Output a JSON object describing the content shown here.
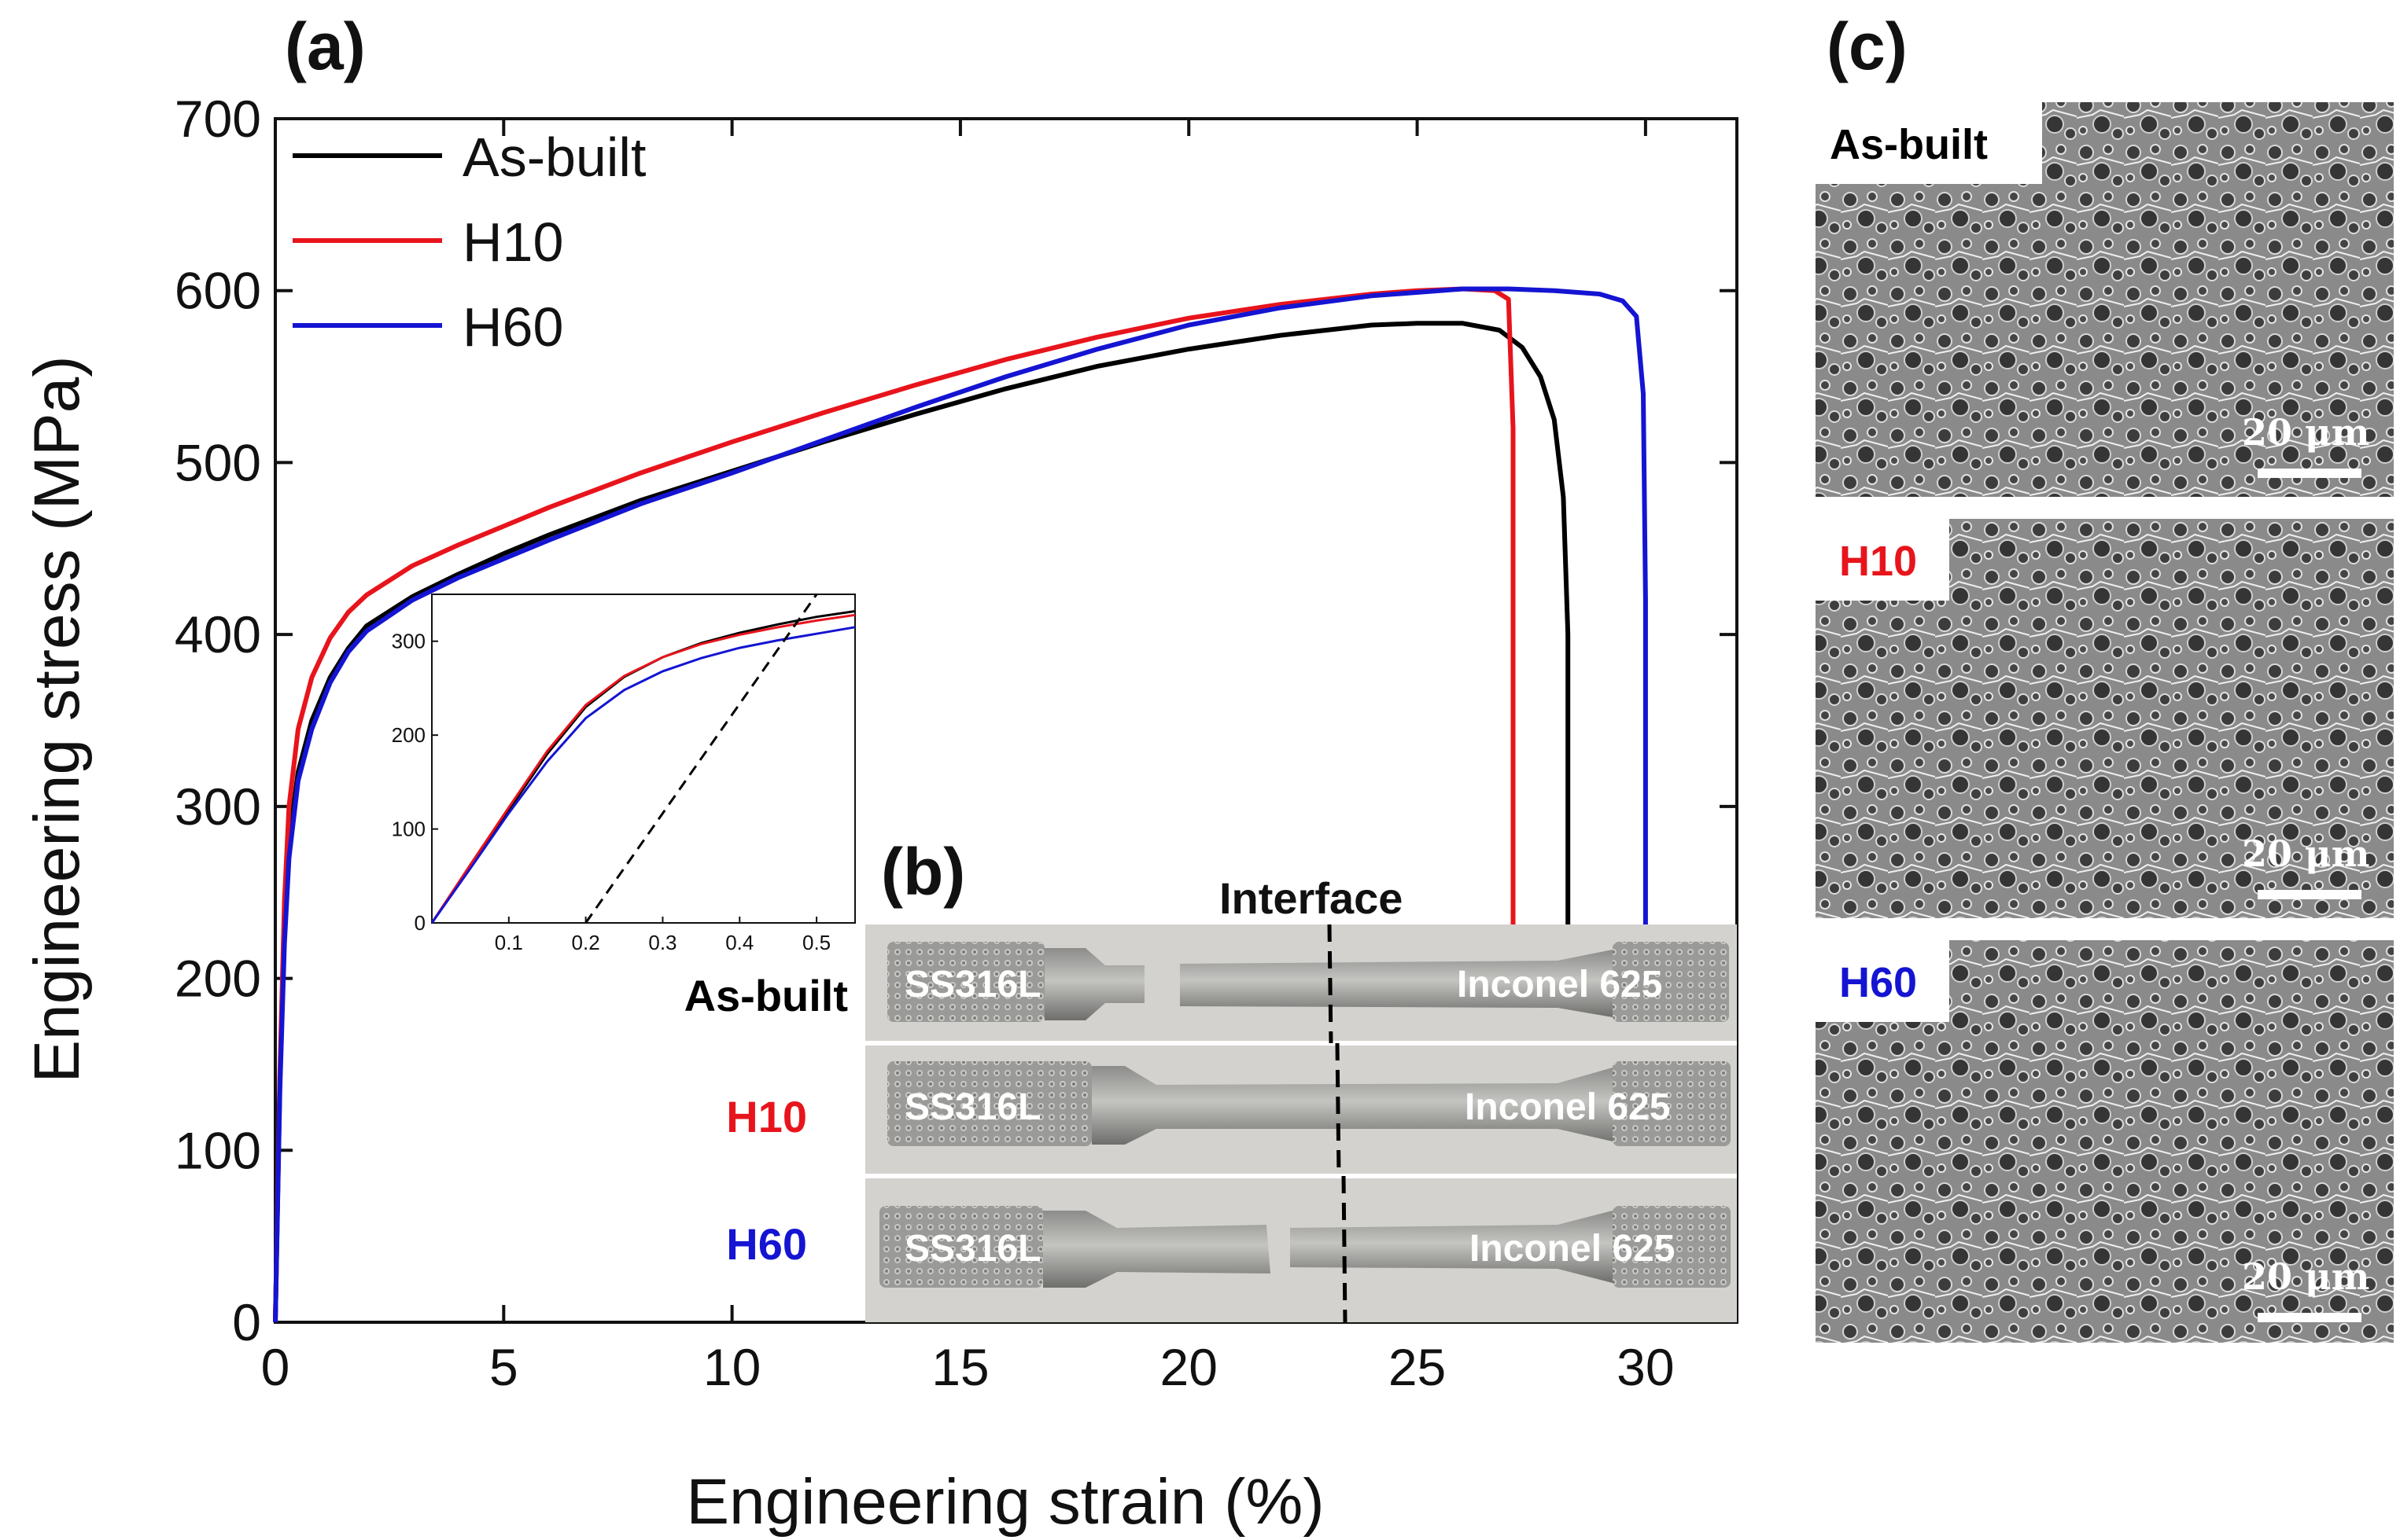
{
  "panel_labels": {
    "a": "(a)",
    "b": "(b)",
    "c": "(c)"
  },
  "colors": {
    "as_built": "#000000",
    "h10": "#e8141c",
    "h60": "#1414d2"
  },
  "chart_data": [
    {
      "type": "line",
      "panel": "(a)",
      "xlabel": "Engineering strain (%)",
      "ylabel": "Engineering stress (MPa)",
      "xlim": [
        0,
        32
      ],
      "ylim": [
        0,
        700
      ],
      "xticks": [
        0,
        5,
        10,
        15,
        20,
        25,
        30
      ],
      "yticks": [
        0,
        100,
        200,
        300,
        400,
        500,
        600,
        700
      ],
      "legend_position": "top-left",
      "series": [
        {
          "name": "As-built",
          "color": "#000000",
          "x": [
            0,
            0.1,
            0.2,
            0.3,
            0.5,
            0.8,
            1.2,
            1.6,
            2,
            3,
            4,
            5,
            6,
            8,
            10,
            12,
            14,
            16,
            18,
            20,
            22,
            24,
            25,
            26,
            26.8,
            27.3,
            27.7,
            28.0,
            28.2,
            28.3,
            28.3
          ],
          "y": [
            0,
            140,
            230,
            280,
            320,
            350,
            375,
            392,
            405,
            422,
            435,
            447,
            458,
            478,
            495,
            512,
            528,
            543,
            556,
            566,
            574,
            580,
            581,
            581,
            577,
            567,
            550,
            525,
            480,
            400,
            0
          ]
        },
        {
          "name": "H10",
          "color": "#e8141c",
          "x": [
            0,
            0.1,
            0.2,
            0.3,
            0.5,
            0.8,
            1.2,
            1.6,
            2,
            3,
            4,
            5,
            6,
            8,
            10,
            12,
            14,
            16,
            18,
            20,
            22,
            24,
            25,
            26,
            26.7,
            27.0,
            27.1,
            27.1
          ],
          "y": [
            0,
            145,
            245,
            300,
            345,
            375,
            398,
            413,
            423,
            440,
            452,
            463,
            474,
            494,
            512,
            529,
            545,
            560,
            573,
            584,
            592,
            598,
            600,
            601,
            600,
            595,
            520,
            0
          ]
        },
        {
          "name": "H60",
          "color": "#1414d2",
          "x": [
            0,
            0.1,
            0.2,
            0.3,
            0.5,
            0.8,
            1.2,
            1.6,
            2,
            3,
            4,
            5,
            6,
            8,
            10,
            12,
            14,
            16,
            18,
            20,
            22,
            24,
            26,
            27,
            28,
            29,
            29.5,
            29.8,
            29.95,
            30.0,
            30.0
          ],
          "y": [
            0,
            135,
            220,
            270,
            315,
            345,
            372,
            390,
            402,
            420,
            433,
            444,
            455,
            476,
            494,
            513,
            532,
            550,
            566,
            580,
            590,
            597,
            601,
            601,
            600,
            598,
            594,
            585,
            540,
            420,
            0
          ]
        }
      ]
    },
    {
      "type": "line",
      "panel": "inset",
      "xlim": [
        0,
        0.55
      ],
      "ylim": [
        0,
        350
      ],
      "xticks": [
        0.1,
        0.2,
        0.3,
        0.4,
        0.5
      ],
      "yticks": [
        0,
        100,
        200,
        300
      ],
      "series": [
        {
          "name": "As-built",
          "color": "#000000",
          "x": [
            0,
            0.05,
            0.1,
            0.15,
            0.2,
            0.25,
            0.3,
            0.35,
            0.4,
            0.45,
            0.5,
            0.55
          ],
          "y": [
            0,
            60,
            120,
            180,
            230,
            262,
            283,
            298,
            309,
            318,
            326,
            332
          ]
        },
        {
          "name": "H10",
          "color": "#e8141c",
          "x": [
            0,
            0.05,
            0.1,
            0.15,
            0.2,
            0.25,
            0.3,
            0.35,
            0.4,
            0.45,
            0.5,
            0.55
          ],
          "y": [
            0,
            62,
            123,
            183,
            232,
            263,
            283,
            297,
            307,
            315,
            322,
            328
          ]
        },
        {
          "name": "H60",
          "color": "#1414d2",
          "x": [
            0,
            0.05,
            0.1,
            0.15,
            0.2,
            0.25,
            0.3,
            0.35,
            0.4,
            0.45,
            0.5,
            0.55
          ],
          "y": [
            0,
            58,
            117,
            172,
            218,
            248,
            268,
            282,
            293,
            301,
            308,
            315
          ]
        },
        {
          "name": "offset",
          "color": "#000000",
          "dashed": true,
          "x": [
            0.2,
            0.5
          ],
          "y": [
            0,
            350
          ]
        }
      ]
    }
  ],
  "panel_b": {
    "interface_label": "Interface",
    "samples": [
      {
        "label": "As-built",
        "color": "#000000",
        "left": "SS316L",
        "right": "Inconel 625"
      },
      {
        "label": "H10",
        "color": "#e8141c",
        "left": "SS316L",
        "right": "Inconel 625"
      },
      {
        "label": "H60",
        "color": "#1414d2",
        "left": "SS316L",
        "right": "Inconel 625"
      }
    ]
  },
  "panel_c": {
    "images": [
      {
        "label": "As-built",
        "color": "#000000",
        "scale": "20 μm"
      },
      {
        "label": "H10",
        "color": "#e8141c",
        "scale": "20 μm"
      },
      {
        "label": "H60",
        "color": "#1414d2",
        "scale": "20 μm"
      }
    ]
  }
}
